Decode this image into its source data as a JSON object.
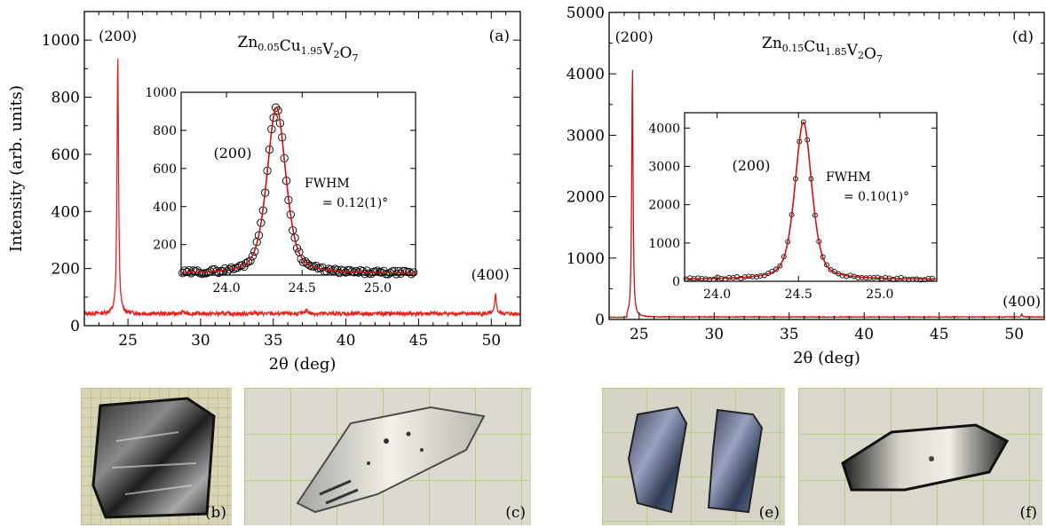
{
  "chart_data": [
    {
      "type": "line",
      "panel_label": "(a)",
      "compound": {
        "base": "Zn",
        "s1": "0.05",
        "e2": "Cu",
        "s2": "1.95",
        "e3": "V",
        "s3": "2",
        "e4": "O",
        "s4": "7"
      },
      "xlabel": "2θ (deg)",
      "ylabel": "Intensity (arb. units)",
      "xlim": [
        22,
        52
      ],
      "ylim": [
        0,
        1100
      ],
      "xticks": [
        25,
        30,
        35,
        40,
        45,
        50
      ],
      "yticks": [
        0,
        200,
        400,
        600,
        800,
        1000
      ],
      "line_color": "#e8201c",
      "baseline": 42,
      "peaks": [
        {
          "label": "(200)",
          "x": 24.3,
          "y": 955
        },
        {
          "label": "(400)",
          "x": 50.3,
          "y": 115
        }
      ],
      "small_bumps": [
        [
          28.8,
          52
        ],
        [
          33.7,
          49
        ],
        [
          37.3,
          58
        ]
      ],
      "inset": {
        "xlim": [
          23.7,
          25.25
        ],
        "ylim": [
          40,
          1000
        ],
        "xticks": [
          24.0,
          24.5,
          25.0
        ],
        "yticks": [
          200,
          400,
          600,
          800,
          1000
        ],
        "peak_label": "(200)",
        "fwhm_label": "FWHM",
        "fwhm_value": "= 0.12(1)°",
        "fit_center": 24.33,
        "fit_height": 920,
        "fit_fwhm": 0.12,
        "fit_base": 48
      }
    },
    {
      "type": "line",
      "panel_label": "(d)",
      "compound": {
        "base": "Zn",
        "s1": "0.15",
        "e2": "Cu",
        "s2": "1.85",
        "e3": "V",
        "s3": "2",
        "e4": "O",
        "s4": "7"
      },
      "xlabel": "2θ (deg)",
      "ylabel": "",
      "xlim": [
        23,
        52
      ],
      "ylim": [
        0,
        5000
      ],
      "xticks": [
        25,
        30,
        35,
        40,
        45,
        50
      ],
      "yticks": [
        0,
        1000,
        2000,
        3000,
        4000,
        5000
      ],
      "line_color": "#c8140f",
      "baseline": 40,
      "peaks": [
        {
          "label": "(200)",
          "x": 24.55,
          "y": 4220
        },
        {
          "label": "(400)",
          "x": 50.5,
          "y": 85
        }
      ],
      "small_bumps": [],
      "inset": {
        "xlim": [
          23.8,
          25.35
        ],
        "ylim": [
          0,
          4400
        ],
        "xticks": [
          24.0,
          24.5,
          25.0
        ],
        "yticks": [
          0,
          1000,
          2000,
          3000,
          4000
        ],
        "peak_label": "(200)",
        "fwhm_label": "FWHM",
        "fwhm_value": "= 0.10(1)°",
        "fit_center": 24.53,
        "fit_height": 4150,
        "fit_fwhm": 0.1,
        "fit_base": 50
      }
    }
  ],
  "photos": [
    {
      "label": "(b)"
    },
    {
      "label": "(c)"
    },
    {
      "label": "(e)"
    },
    {
      "label": "(f)"
    }
  ]
}
